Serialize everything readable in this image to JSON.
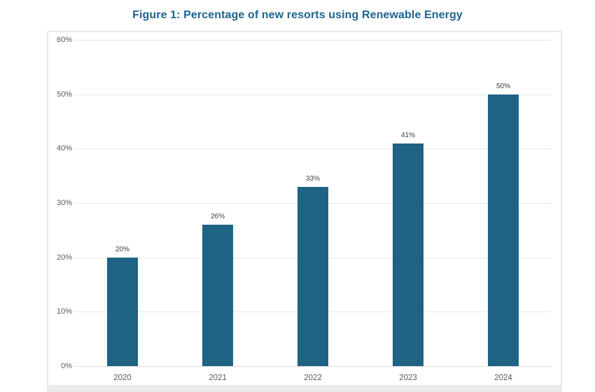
{
  "page": {
    "background_color": "#ffffff"
  },
  "chart_data": {
    "type": "bar",
    "title": "Figure 1: Percentage of new resorts using Renewable Energy",
    "title_color": "#1d6490",
    "categories": [
      "2020",
      "2021",
      "2022",
      "2023",
      "2024"
    ],
    "values": [
      20,
      26,
      33,
      41,
      50
    ],
    "data_labels": [
      "20%",
      "26%",
      "33%",
      "41%",
      "50%"
    ],
    "xlabel": "",
    "ylabel": "",
    "ylim": [
      0,
      60
    ],
    "y_tick_values": [
      0,
      10,
      20,
      30,
      40,
      50,
      60
    ],
    "y_tick_labels": [
      "0%",
      "10%",
      "20%",
      "30%",
      "40%",
      "50%",
      "60%"
    ],
    "grid": true,
    "legend": false,
    "bar_color": "#1e6383",
    "gridline_color": "#e8e8e8",
    "tick_label_color": "#595959",
    "data_label_color": "#3d3d3d"
  }
}
